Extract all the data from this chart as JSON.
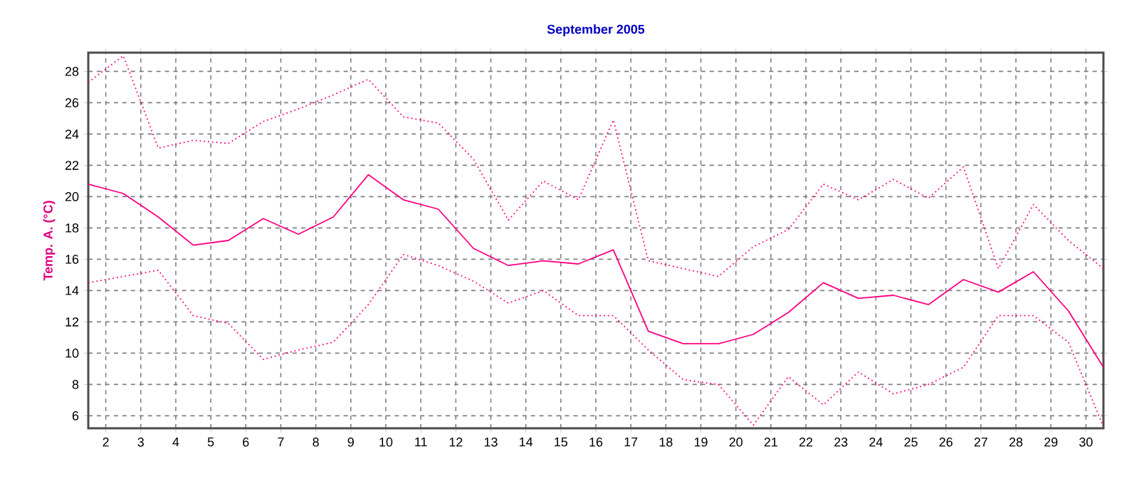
{
  "chart_data": {
    "type": "line",
    "title": "September 2005",
    "ylabel": "Temp. A. (°C)",
    "x": [
      1.5,
      2.5,
      3.5,
      4.5,
      5.5,
      6.5,
      7.5,
      8.5,
      9.5,
      10.5,
      11.5,
      12.5,
      13.5,
      14.5,
      15.5,
      16.5,
      17.5,
      18.5,
      19.5,
      20.5,
      21.5,
      22.5,
      23.5,
      24.5,
      25.5,
      26.5,
      27.5,
      28.5,
      29.5,
      30.5
    ],
    "xlim": [
      1.5,
      30.5
    ],
    "xticks": [
      2,
      3,
      4,
      5,
      6,
      7,
      8,
      9,
      10,
      11,
      12,
      13,
      14,
      15,
      16,
      17,
      18,
      19,
      20,
      21,
      22,
      23,
      24,
      25,
      26,
      27,
      28,
      29,
      30
    ],
    "ylim": [
      5.2,
      29.2
    ],
    "yticks": [
      6,
      8,
      10,
      12,
      14,
      16,
      18,
      20,
      22,
      24,
      26,
      28
    ],
    "grid": true,
    "series": [
      {
        "color": "#ff0080",
        "line_style": "dotted",
        "values": [
          27.3,
          29.0,
          23.1,
          23.6,
          23.4,
          24.8,
          25.6,
          26.5,
          27.5,
          25.1,
          24.7,
          22.4,
          18.5,
          21.0,
          19.8,
          24.9,
          15.9,
          15.4,
          14.9,
          16.8,
          17.9,
          20.8,
          19.8,
          21.1,
          19.9,
          21.9,
          15.4,
          19.5,
          17.2,
          15.4
        ]
      },
      {
        "color": "#ff0080",
        "line_style": "solid",
        "values": [
          20.8,
          20.2,
          18.7,
          16.9,
          17.2,
          18.6,
          17.6,
          18.7,
          21.4,
          19.8,
          19.2,
          16.7,
          15.6,
          15.9,
          15.7,
          16.6,
          11.4,
          10.6,
          10.6,
          11.2,
          12.6,
          14.5,
          13.5,
          13.7,
          13.1,
          14.7,
          13.9,
          15.2,
          12.7,
          9.1
        ]
      },
      {
        "color": "#ff0080",
        "line_style": "dotted",
        "values": [
          14.5,
          14.9,
          15.3,
          12.4,
          11.9,
          9.6,
          10.2,
          10.7,
          13.1,
          16.3,
          15.6,
          14.6,
          13.2,
          14.0,
          12.4,
          12.4,
          10.2,
          8.3,
          8.0,
          5.4,
          8.5,
          6.7,
          8.8,
          7.4,
          8.0,
          9.1,
          12.4,
          12.4,
          10.7,
          5.3
        ]
      }
    ]
  }
}
